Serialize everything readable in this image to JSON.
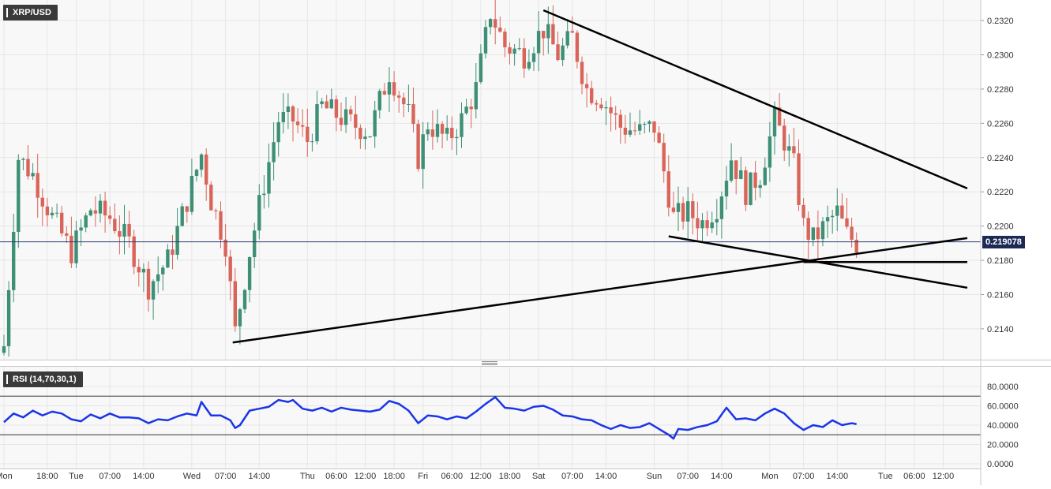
{
  "chart_data": [
    {
      "type": "candlestick",
      "symbol": "XRP/USD",
      "ylim": [
        0.2122,
        0.2332
      ],
      "y_ticks": [
        "0.2140",
        "0.2160",
        "0.2180",
        "0.2200",
        "0.2220",
        "0.2240",
        "0.2260",
        "0.2280",
        "0.2300",
        "0.2320"
      ],
      "last_price": "0.219078",
      "last_price_value": 0.219078,
      "x_ticks": [
        {
          "label": "Mon",
          "bar": 0
        },
        {
          "label": "18:00",
          "bar": 9
        },
        {
          "label": "Tue",
          "bar": 15
        },
        {
          "label": "07:00",
          "bar": 22
        },
        {
          "label": "14:00",
          "bar": 29
        },
        {
          "label": "Wed",
          "bar": 39
        },
        {
          "label": "07:00",
          "bar": 46
        },
        {
          "label": "14:00",
          "bar": 53
        },
        {
          "label": "Thu",
          "bar": 63
        },
        {
          "label": "06:00",
          "bar": 69
        },
        {
          "label": "12:00",
          "bar": 75
        },
        {
          "label": "18:00",
          "bar": 81
        },
        {
          "label": "Fri",
          "bar": 87
        },
        {
          "label": "06:00",
          "bar": 93
        },
        {
          "label": "12:00",
          "bar": 99
        },
        {
          "label": "18:00",
          "bar": 105
        },
        {
          "label": "Sat",
          "bar": 111
        },
        {
          "label": "07:00",
          "bar": 118
        },
        {
          "label": "14:00",
          "bar": 125
        },
        {
          "label": "Sun",
          "bar": 135
        },
        {
          "label": "07:00",
          "bar": 142
        },
        {
          "label": "14:00",
          "bar": 149
        },
        {
          "label": "Mon",
          "bar": 159
        },
        {
          "label": "07:00",
          "bar": 166
        },
        {
          "label": "14:00",
          "bar": 173
        },
        {
          "label": "Tue",
          "bar": 183
        },
        {
          "label": "06:00",
          "bar": 189
        },
        {
          "label": "12:00",
          "bar": 195
        }
      ],
      "trend_lines": [
        {
          "name": "falling-resistance",
          "from": [
            112,
            0.2326
          ],
          "to": [
            200,
            0.2222
          ]
        },
        {
          "name": "rising-support",
          "from": [
            47.5,
            0.2132
          ],
          "to": [
            200,
            0.2193
          ]
        },
        {
          "name": "lower-falling",
          "from": [
            138,
            0.2194
          ],
          "to": [
            200,
            0.2164
          ]
        },
        {
          "name": "horizontal-support",
          "from": [
            166,
            0.2179
          ],
          "to": [
            200,
            0.2179
          ]
        }
      ],
      "horizontal_line": 0.219078,
      "key_closes": [
        [
          0,
          0.213
        ],
        [
          3,
          0.224
        ],
        [
          6,
          0.223
        ],
        [
          10,
          0.2205
        ],
        [
          14,
          0.2185
        ],
        [
          18,
          0.221
        ],
        [
          22,
          0.2205
        ],
        [
          26,
          0.219
        ],
        [
          30,
          0.2165
        ],
        [
          34,
          0.218
        ],
        [
          38,
          0.2215
        ],
        [
          41,
          0.2242
        ],
        [
          43,
          0.2215
        ],
        [
          46,
          0.219
        ],
        [
          48,
          0.2138
        ],
        [
          51,
          0.2185
        ],
        [
          54,
          0.2225
        ],
        [
          57,
          0.2262
        ],
        [
          60,
          0.2262
        ],
        [
          63,
          0.225
        ],
        [
          66,
          0.227
        ],
        [
          69,
          0.2265
        ],
        [
          72,
          0.226
        ],
        [
          76,
          0.2255
        ],
        [
          80,
          0.229
        ],
        [
          84,
          0.2265
        ],
        [
          86,
          0.224
        ],
        [
          88,
          0.226
        ],
        [
          92,
          0.225
        ],
        [
          95,
          0.2262
        ],
        [
          98,
          0.228
        ],
        [
          101,
          0.2325
        ],
        [
          104,
          0.2305
        ],
        [
          108,
          0.23
        ],
        [
          112,
          0.2315
        ],
        [
          115,
          0.23
        ],
        [
          118,
          0.231
        ],
        [
          121,
          0.228
        ],
        [
          124,
          0.2275
        ],
        [
          128,
          0.2258
        ],
        [
          132,
          0.2255
        ],
        [
          135,
          0.2258
        ],
        [
          137,
          0.2232
        ],
        [
          139,
          0.2205
        ],
        [
          142,
          0.2208
        ],
        [
          145,
          0.2202
        ],
        [
          148,
          0.2212
        ],
        [
          151,
          0.224
        ],
        [
          154,
          0.222
        ],
        [
          157,
          0.223
        ],
        [
          160,
          0.2262
        ],
        [
          162,
          0.225
        ],
        [
          164,
          0.2235
        ],
        [
          166,
          0.22
        ],
        [
          168,
          0.2192
        ],
        [
          171,
          0.2202
        ],
        [
          173,
          0.2208
        ],
        [
          175,
          0.2195
        ],
        [
          177,
          0.219
        ]
      ]
    },
    {
      "type": "line",
      "title": "RSI (14,70,30,1)",
      "ylim": [
        0,
        80
      ],
      "y_ticks": [
        "0.0000",
        "20.0000",
        "40.0000",
        "60.0000",
        "80.0000"
      ],
      "levels": [
        70,
        30
      ],
      "series": [
        {
          "color": "#1a35e8",
          "points": [
            [
              0,
              43
            ],
            [
              2,
              52
            ],
            [
              4,
              48
            ],
            [
              6,
              55
            ],
            [
              8,
              50
            ],
            [
              10,
              54
            ],
            [
              12,
              52
            ],
            [
              14,
              46
            ],
            [
              16,
              44
            ],
            [
              18,
              51
            ],
            [
              20,
              47
            ],
            [
              22,
              52
            ],
            [
              24,
              48
            ],
            [
              26,
              48
            ],
            [
              28,
              47
            ],
            [
              30,
              42
            ],
            [
              32,
              46
            ],
            [
              34,
              45
            ],
            [
              36,
              49
            ],
            [
              38,
              52
            ],
            [
              40,
              50
            ],
            [
              41,
              64
            ],
            [
              43,
              50
            ],
            [
              45,
              50
            ],
            [
              47,
              45
            ],
            [
              48,
              37
            ],
            [
              49,
              40
            ],
            [
              51,
              55
            ],
            [
              53,
              57
            ],
            [
              55,
              59
            ],
            [
              57,
              66
            ],
            [
              59,
              64
            ],
            [
              60,
              66
            ],
            [
              62,
              57
            ],
            [
              64,
              55
            ],
            [
              66,
              58
            ],
            [
              68,
              54
            ],
            [
              70,
              58
            ],
            [
              72,
              56
            ],
            [
              74,
              55
            ],
            [
              76,
              54
            ],
            [
              78,
              56
            ],
            [
              80,
              65
            ],
            [
              82,
              62
            ],
            [
              84,
              55
            ],
            [
              86,
              42
            ],
            [
              88,
              50
            ],
            [
              90,
              49
            ],
            [
              92,
              46
            ],
            [
              94,
              49
            ],
            [
              96,
              47
            ],
            [
              98,
              54
            ],
            [
              100,
              62
            ],
            [
              102,
              69
            ],
            [
              104,
              58
            ],
            [
              106,
              57
            ],
            [
              108,
              55
            ],
            [
              110,
              59
            ],
            [
              112,
              60
            ],
            [
              114,
              56
            ],
            [
              116,
              50
            ],
            [
              118,
              49
            ],
            [
              120,
              46
            ],
            [
              122,
              45
            ],
            [
              124,
              40
            ],
            [
              126,
              36
            ],
            [
              128,
              40
            ],
            [
              130,
              37
            ],
            [
              132,
              38
            ],
            [
              134,
              42
            ],
            [
              136,
              36
            ],
            [
              138,
              30
            ],
            [
              139,
              26
            ],
            [
              140,
              36
            ],
            [
              142,
              35
            ],
            [
              144,
              38
            ],
            [
              146,
              40
            ],
            [
              148,
              44
            ],
            [
              150,
              58
            ],
            [
              152,
              46
            ],
            [
              154,
              47
            ],
            [
              156,
              45
            ],
            [
              158,
              52
            ],
            [
              160,
              57
            ],
            [
              162,
              52
            ],
            [
              164,
              42
            ],
            [
              166,
              35
            ],
            [
              168,
              40
            ],
            [
              170,
              38
            ],
            [
              172,
              45
            ],
            [
              174,
              40
            ],
            [
              176,
              42
            ],
            [
              177,
              41
            ]
          ]
        }
      ]
    }
  ]
}
